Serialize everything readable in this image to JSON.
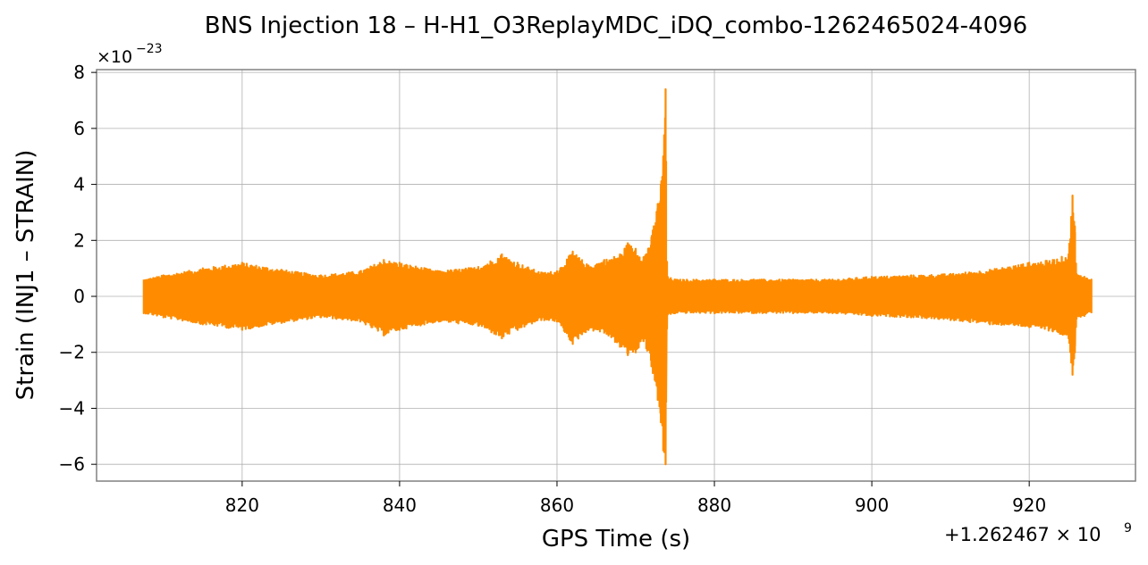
{
  "chart_data": {
    "type": "line",
    "title": "BNS Injection 18 – H-H1_O3ReplayMDC_iDQ_combo-1262465024-4096",
    "xlabel": "GPS Time (s)",
    "ylabel": "Strain (INJ1 – STRAIN)",
    "x_offset_label": "+1.262467 × 10",
    "x_offset_exp": "9",
    "y_scale_label": "×10",
    "y_scale_exp": "−23",
    "xlim": [
      801.5,
      933.5
    ],
    "ylim": [
      -6.6,
      8.1
    ],
    "x_ticks": [
      820,
      840,
      860,
      880,
      900,
      920
    ],
    "x_tick_labels": [
      "820",
      "840",
      "860",
      "880",
      "900",
      "920"
    ],
    "y_ticks": [
      -6,
      -4,
      -2,
      0,
      2,
      4,
      6,
      8
    ],
    "y_tick_labels": [
      "−6",
      "−4",
      "−2",
      "0",
      "2",
      "4",
      "6",
      "8"
    ],
    "grid": true,
    "series": [
      {
        "color": "#ff8c00",
        "x_range": [
          807.5,
          927.9
        ],
        "envelope": {
          "x": [
            807.5,
            810,
            815,
            820,
            825,
            830,
            835,
            838,
            840,
            845,
            850,
            853,
            855,
            858,
            860,
            862,
            864,
            866,
            868,
            869,
            870,
            871,
            872,
            872.8,
            873.2,
            873.5,
            873.8,
            874,
            875,
            880,
            885,
            890,
            895,
            900,
            905,
            910,
            915,
            920,
            923,
            925,
            925.5,
            925.8,
            926,
            927,
            927.9
          ],
          "upper": [
            0.6,
            0.75,
            1.0,
            1.2,
            0.95,
            0.75,
            0.9,
            1.3,
            1.2,
            0.9,
            1.05,
            1.5,
            1.2,
            0.85,
            0.9,
            1.6,
            1.1,
            1.3,
            1.5,
            1.9,
            1.7,
            1.4,
            2.1,
            3.3,
            4.0,
            5.0,
            7.4,
            0.7,
            0.6,
            0.6,
            0.6,
            0.6,
            0.6,
            0.7,
            0.75,
            0.8,
            0.95,
            1.2,
            1.3,
            1.5,
            3.6,
            2.5,
            0.8,
            0.7,
            0.6
          ],
          "lower": [
            -0.6,
            -0.75,
            -1.0,
            -1.2,
            -0.95,
            -0.75,
            -0.9,
            -1.4,
            -1.2,
            -0.9,
            -1.05,
            -1.5,
            -1.2,
            -0.85,
            -0.9,
            -1.7,
            -1.2,
            -1.3,
            -1.8,
            -2.1,
            -2.0,
            -1.6,
            -2.5,
            -3.7,
            -4.5,
            -5.5,
            -6.0,
            -0.7,
            -0.6,
            -0.6,
            -0.6,
            -0.6,
            -0.6,
            -0.7,
            -0.75,
            -0.85,
            -1.0,
            -1.1,
            -1.25,
            -1.5,
            -2.8,
            -2.0,
            -0.8,
            -0.7,
            -0.6
          ]
        }
      }
    ]
  }
}
